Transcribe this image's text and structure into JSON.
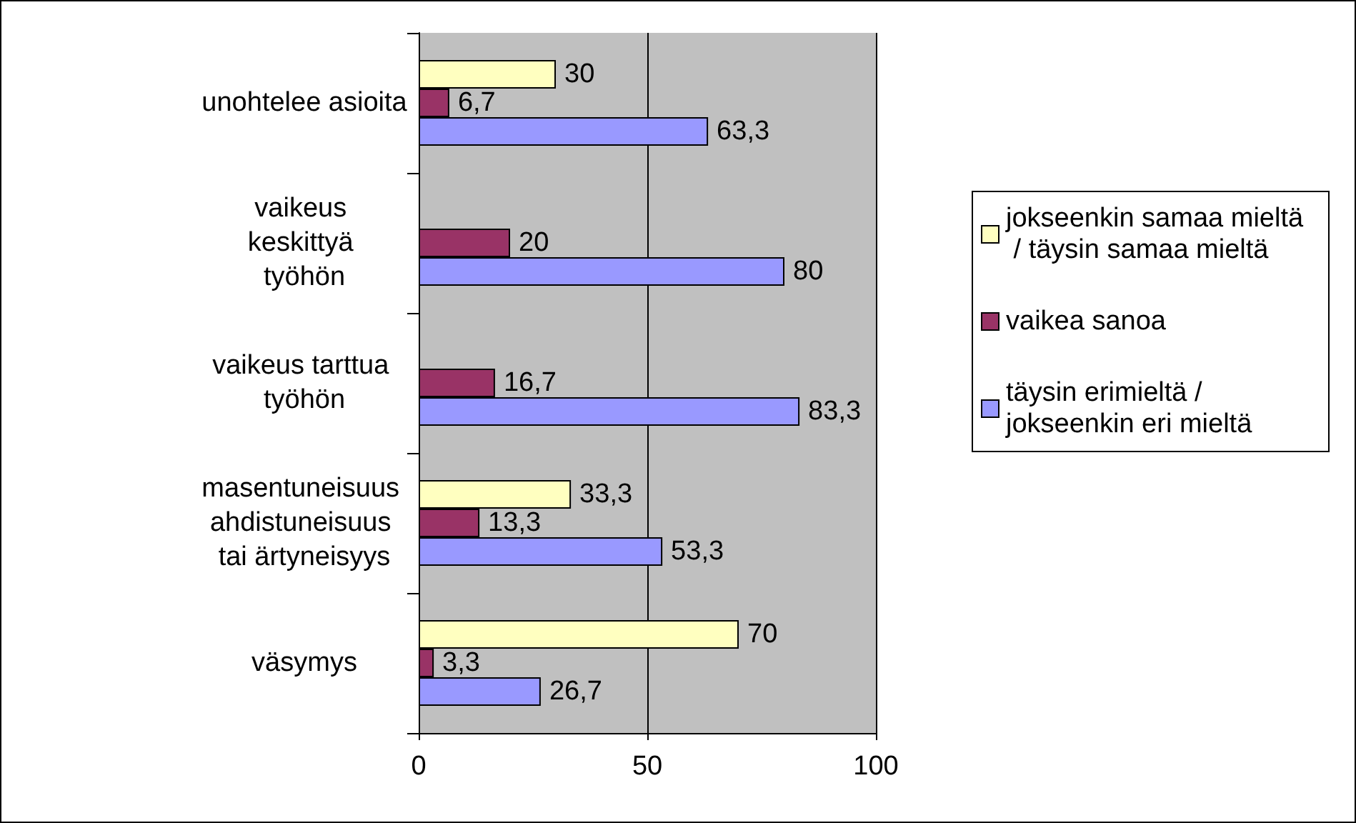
{
  "chart_data": {
    "type": "bar",
    "orientation": "horizontal",
    "categories": [
      "unohtelee asioita",
      "vaikeus keskittyä työhön",
      "vaikeus tarttua työhön",
      "masentuneisuus ahdistuneisuus tai ärtyneisyys",
      "väsymys"
    ],
    "series": [
      {
        "name": "jokseenkin samaa mieltä / täysin samaa mieltä",
        "color": "#ffffc0",
        "values": [
          30,
          null,
          null,
          33.3,
          70
        ],
        "value_labels": [
          "30",
          null,
          null,
          "33,3",
          "70"
        ]
      },
      {
        "name": "vaikea sanoa",
        "color": "#993366",
        "values": [
          6.7,
          20,
          16.7,
          13.3,
          3.3
        ],
        "value_labels": [
          "6,7",
          "20",
          "16,7",
          "13,3",
          "3,3"
        ]
      },
      {
        "name": "täysin erimieltä / jokseenkin eri mieltä",
        "color": "#9999ff",
        "values": [
          63.3,
          80,
          83.3,
          53.3,
          26.7
        ],
        "value_labels": [
          "63,3",
          "80",
          "83,3",
          "53,3",
          "26,7"
        ]
      }
    ],
    "xlim": [
      0,
      100
    ],
    "xticks": [
      0,
      50,
      100
    ],
    "grid": "x",
    "legend": "right"
  }
}
